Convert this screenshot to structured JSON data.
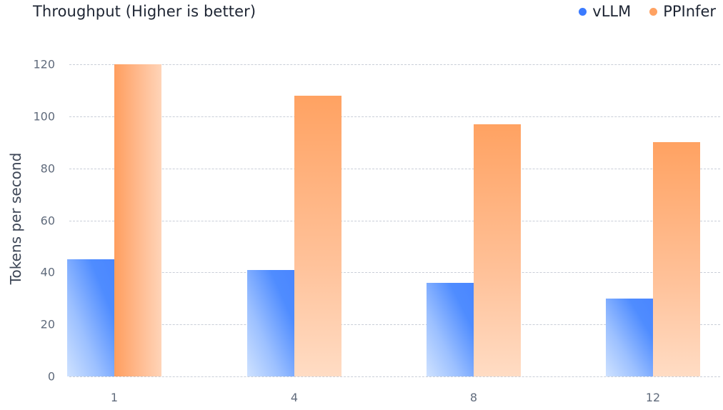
{
  "chart": {
    "title": "Throughput (Higher is better)",
    "ylabel": "Tokens per second",
    "legend": [
      {
        "name": "vLLM",
        "color": "#3b7bff"
      },
      {
        "name": "PPInfer",
        "color": "#ffa262"
      }
    ],
    "yticks": [
      "0",
      "20",
      "40",
      "60",
      "80",
      "100",
      "120"
    ],
    "xticks": [
      "1",
      "4",
      "8",
      "12"
    ]
  },
  "chart_data": {
    "type": "bar",
    "title": "Throughput (Higher is better)",
    "xlabel": "",
    "ylabel": "Tokens per second",
    "categories": [
      "1",
      "4",
      "8",
      "12"
    ],
    "series": [
      {
        "name": "vLLM",
        "color": "#3b7bff",
        "values": [
          45,
          41,
          36,
          30
        ]
      },
      {
        "name": "PPInfer",
        "color": "#ffa262",
        "values": [
          120,
          108,
          97,
          90
        ]
      }
    ],
    "ylim": [
      0,
      120
    ],
    "yticks": [
      0,
      20,
      40,
      60,
      80,
      100,
      120
    ],
    "grid": true,
    "grid_style": "dashed horizontal",
    "legend_position": "top-right"
  }
}
